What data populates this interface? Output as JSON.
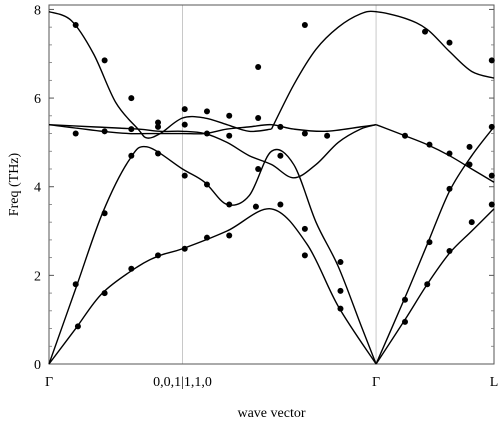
{
  "chart_data": {
    "type": "line",
    "xlabel": "wave vector",
    "ylabel": "Freq (THz)",
    "ylim": [
      0,
      8.1
    ],
    "yticks": [
      0,
      2,
      4,
      6,
      8
    ],
    "xlim": [
      0,
      1
    ],
    "xticks": [
      {
        "label": "Γ",
        "x": 0
      },
      {
        "label": "0,0,1|1,1,0",
        "x": 0.3
      },
      {
        "label": "Γ",
        "x": 0.735
      },
      {
        "label": "L",
        "x": 1
      }
    ],
    "vertical_gridlines_at_ticks": true,
    "style": {
      "line_color": "#000000",
      "point_color": "#000000",
      "grid_color": "#c8c8c8"
    },
    "series": [
      {
        "kind": "curve",
        "x": [
          0,
          0.06,
          0.12,
          0.2,
          0.25,
          0.3,
          0.4,
          0.5,
          0.58,
          0.65,
          0.735
        ],
        "y": [
          0,
          0.8,
          1.6,
          2.2,
          2.45,
          2.6,
          3.0,
          3.5,
          2.7,
          1.3,
          0
        ]
      },
      {
        "kind": "curve",
        "x": [
          0,
          0.06,
          0.12,
          0.18,
          0.22,
          0.3,
          0.35,
          0.4,
          0.45,
          0.5,
          0.55,
          0.6,
          0.65,
          0.7,
          0.735
        ],
        "y": [
          0,
          1.7,
          3.4,
          4.6,
          4.9,
          4.4,
          4.1,
          3.6,
          3.8,
          4.8,
          4.5,
          3.2,
          2.2,
          0.9,
          0
        ]
      },
      {
        "kind": "curve",
        "x": [
          0,
          0.1,
          0.2,
          0.25,
          0.3,
          0.35,
          0.4,
          0.45,
          0.5,
          0.55,
          0.6,
          0.65,
          0.7,
          0.735
        ],
        "y": [
          5.4,
          5.35,
          5.3,
          5.25,
          5.25,
          5.2,
          5.0,
          4.7,
          4.5,
          4.2,
          4.5,
          5.0,
          5.3,
          5.4
        ]
      },
      {
        "kind": "curve",
        "x": [
          0,
          0.12,
          0.18,
          0.24,
          0.3,
          0.35,
          0.4,
          0.45,
          0.5,
          0.55,
          0.62,
          0.7,
          0.735
        ],
        "y": [
          5.4,
          5.25,
          5.2,
          5.2,
          5.2,
          5.2,
          5.3,
          5.35,
          5.4,
          5.3,
          5.25,
          5.35,
          5.4
        ]
      },
      {
        "kind": "curve",
        "x": [
          0,
          0.05,
          0.1,
          0.15,
          0.2,
          0.22,
          0.25,
          0.3,
          0.35,
          0.4,
          0.45,
          0.5
        ],
        "y": [
          7.95,
          7.75,
          7.0,
          5.9,
          5.3,
          5.1,
          5.2,
          5.55,
          5.55,
          5.4,
          5.25,
          5.3
        ]
      },
      {
        "kind": "curve",
        "x": [
          0.5,
          0.55,
          0.6,
          0.65,
          0.7,
          0.735,
          0.8,
          0.85,
          0.9,
          0.95,
          1.0
        ],
        "y": [
          5.3,
          6.3,
          7.1,
          7.6,
          7.9,
          7.95,
          7.8,
          7.55,
          7.05,
          6.6,
          6.45
        ]
      },
      {
        "kind": "curve",
        "x": [
          0.735,
          0.8,
          0.85,
          0.9,
          0.95,
          1.0
        ],
        "y": [
          0,
          1.0,
          1.8,
          2.5,
          3.0,
          3.5
        ]
      },
      {
        "kind": "curve",
        "x": [
          0.735,
          0.8,
          0.85,
          0.9,
          0.95,
          1.0
        ],
        "y": [
          0,
          1.5,
          2.7,
          3.9,
          4.7,
          5.35
        ]
      },
      {
        "kind": "curve",
        "x": [
          0.735,
          0.8,
          0.85,
          0.9,
          0.95,
          1.0
        ],
        "y": [
          5.4,
          5.15,
          4.95,
          4.7,
          4.4,
          4.1
        ]
      },
      {
        "kind": "points",
        "x": [
          0.065,
          0.125,
          0.185,
          0.245,
          0.305,
          0.355,
          0.405,
          0.465,
          0.52,
          0.575,
          0.655,
          0.06,
          0.125,
          0.185,
          0.245,
          0.305,
          0.355,
          0.405,
          0.47,
          0.52,
          0.575,
          0.655,
          0.06,
          0.125,
          0.185,
          0.245,
          0.305,
          0.355,
          0.405,
          0.47,
          0.52,
          0.575,
          0.625,
          0.06,
          0.125,
          0.185,
          0.245,
          0.305,
          0.355,
          0.405,
          0.47,
          0.575,
          0.655,
          0.8,
          0.85,
          0.9,
          0.95,
          0.995,
          0.8,
          0.855,
          0.9,
          0.945,
          0.995,
          0.8,
          0.855,
          0.9,
          0.945,
          0.995,
          0.845,
          0.9,
          0.995
        ],
        "y": [
          0.85,
          1.6,
          2.15,
          2.45,
          2.6,
          2.85,
          2.9,
          3.55,
          3.6,
          3.05,
          1.25,
          1.8,
          3.4,
          4.7,
          4.75,
          4.25,
          4.05,
          3.6,
          4.4,
          4.7,
          2.45,
          1.65,
          5.2,
          5.25,
          5.3,
          5.35,
          5.4,
          5.2,
          5.15,
          5.55,
          5.35,
          5.2,
          5.15,
          7.65,
          6.85,
          6.0,
          5.45,
          5.75,
          5.7,
          5.6,
          6.7,
          7.65,
          2.3,
          0.95,
          1.8,
          2.55,
          3.2,
          3.6,
          1.45,
          2.75,
          3.95,
          4.9,
          5.35,
          5.15,
          4.95,
          4.75,
          4.5,
          4.25,
          7.5,
          7.25,
          6.85
        ]
      }
    ]
  }
}
